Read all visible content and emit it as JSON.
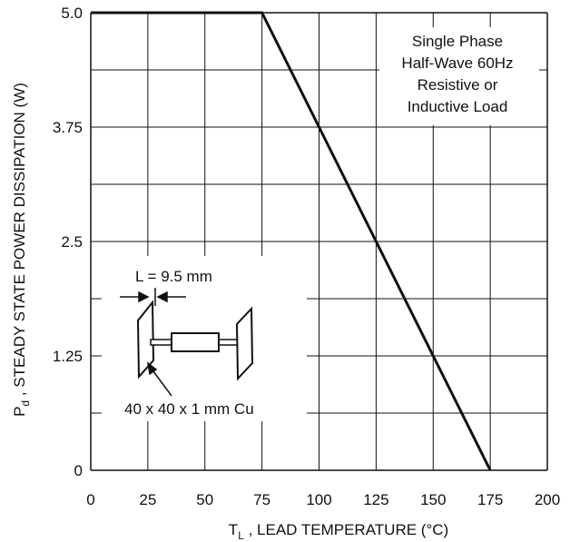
{
  "chart_data": {
    "type": "line",
    "xlabel_main": "T",
    "xlabel_sub": "L",
    "xlabel_rest": " , LEAD TEMPERATURE (°C)",
    "ylabel_main": "P",
    "ylabel_sub": "d",
    "ylabel_rest": " , STEADY STATE POWER DISSIPATION (W)",
    "xlim": [
      0,
      200
    ],
    "ylim": [
      0,
      5.0
    ],
    "x_ticks": [
      "0",
      "25",
      "50",
      "75",
      "100",
      "125",
      "150",
      "175",
      "200"
    ],
    "y_ticks": [
      "0",
      "1.25",
      "2.5",
      "3.75",
      "5.0"
    ],
    "grid": true,
    "series": [
      {
        "x": [
          0,
          75,
          175
        ],
        "y": [
          5.0,
          5.0,
          0
        ]
      }
    ],
    "annotation_lines": [
      "Single Phase",
      "Half-Wave 60Hz",
      "Resistive or",
      "Inductive Load"
    ],
    "dimension_label": "L = 9.5 mm",
    "heatsink_label": "40 x 40 x 1 mm Cu"
  },
  "colors": {
    "line": "#111111",
    "grid": "#111111",
    "background": "#ffffff"
  }
}
